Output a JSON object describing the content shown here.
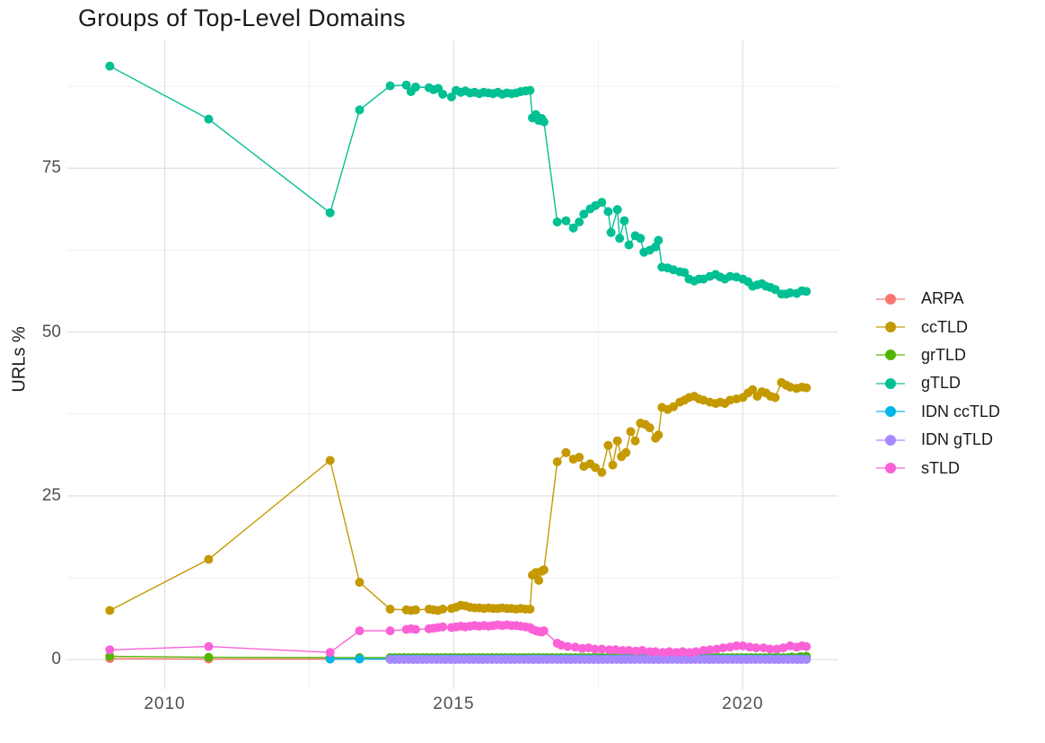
{
  "chart": {
    "title": "Groups of Top-Level Domains",
    "ylabel": "URLs %"
  },
  "chart_data": {
    "type": "line",
    "title": "Groups of Top-Level Domains",
    "xlabel": "",
    "ylabel": "URLs %",
    "grid": true,
    "legend_position": "right",
    "x_domain": [
      2008.315,
      2021.64
    ],
    "y_domain": [
      -4.5,
      94.52
    ],
    "x_ticks": [
      {
        "value": 2010,
        "label": "2010"
      },
      {
        "value": 2015,
        "label": "2015"
      },
      {
        "value": 2020,
        "label": "2020"
      }
    ],
    "x_minor_ticks": [
      2012.5,
      2017.5
    ],
    "y_ticks": [
      {
        "value": 0,
        "label": "0"
      },
      {
        "value": 25,
        "label": "25"
      },
      {
        "value": 50,
        "label": "50"
      },
      {
        "value": 75,
        "label": "75"
      }
    ],
    "y_minor_ticks": [
      12.5,
      37.5,
      62.5,
      87.5
    ],
    "series": [
      {
        "name": "ARPA",
        "color": "#F8766D",
        "points": [
          [
            2009.05,
            0.15
          ],
          [
            2010.76,
            0.1
          ],
          [
            2012.86,
            0.08
          ],
          [
            2013.37,
            0.08
          ]
        ],
        "runs": [
          {
            "from": 2013.9,
            "to": 2021.1,
            "step": 0.08,
            "value": 0.07
          }
        ]
      },
      {
        "name": "ccTLD",
        "color": "#C49A00",
        "points": [
          [
            2009.05,
            7.5
          ],
          [
            2010.76,
            15.3
          ],
          [
            2012.86,
            30.4
          ],
          [
            2013.37,
            11.8
          ],
          [
            2013.9,
            7.7
          ],
          [
            2014.18,
            7.6
          ],
          [
            2014.26,
            7.5
          ],
          [
            2014.34,
            7.6
          ],
          [
            2014.57,
            7.7
          ],
          [
            2014.65,
            7.6
          ],
          [
            2014.73,
            7.5
          ],
          [
            2014.81,
            7.7
          ],
          [
            2014.96,
            7.8
          ],
          [
            2015.04,
            8.0
          ],
          [
            2015.12,
            8.3
          ],
          [
            2015.2,
            8.2
          ],
          [
            2015.28,
            8.0
          ],
          [
            2015.36,
            7.9
          ],
          [
            2015.44,
            7.9
          ],
          [
            2015.52,
            7.8
          ],
          [
            2015.6,
            7.9
          ],
          [
            2015.68,
            7.8
          ],
          [
            2015.76,
            7.8
          ],
          [
            2015.84,
            7.9
          ],
          [
            2015.92,
            7.8
          ],
          [
            2016.0,
            7.8
          ],
          [
            2016.08,
            7.7
          ],
          [
            2016.16,
            7.8
          ],
          [
            2016.24,
            7.7
          ],
          [
            2016.32,
            7.7
          ],
          [
            2016.36,
            12.9
          ],
          [
            2016.42,
            13.3
          ],
          [
            2016.47,
            12.1
          ],
          [
            2016.52,
            13.5
          ],
          [
            2016.56,
            13.7
          ],
          [
            2016.79,
            30.2
          ],
          [
            2016.94,
            31.6
          ],
          [
            2017.07,
            30.6
          ],
          [
            2017.17,
            30.9
          ],
          [
            2017.25,
            29.5
          ],
          [
            2017.36,
            29.9
          ],
          [
            2017.45,
            29.3
          ],
          [
            2017.56,
            28.6
          ],
          [
            2017.67,
            32.7
          ],
          [
            2017.75,
            29.7
          ],
          [
            2017.83,
            33.4
          ],
          [
            2017.9,
            31.0
          ],
          [
            2017.98,
            31.6
          ],
          [
            2018.06,
            34.8
          ],
          [
            2018.14,
            33.4
          ],
          [
            2018.23,
            36.1
          ],
          [
            2018.31,
            35.9
          ],
          [
            2018.39,
            35.4
          ],
          [
            2018.49,
            33.8
          ],
          [
            2018.54,
            34.3
          ],
          [
            2018.6,
            38.5
          ],
          [
            2018.7,
            38.2
          ],
          [
            2018.8,
            38.6
          ],
          [
            2018.91,
            39.3
          ],
          [
            2018.99,
            39.6
          ],
          [
            2019.07,
            40.0
          ],
          [
            2019.16,
            40.2
          ],
          [
            2019.24,
            39.8
          ],
          [
            2019.32,
            39.6
          ],
          [
            2019.43,
            39.3
          ],
          [
            2019.53,
            39.1
          ],
          [
            2019.61,
            39.3
          ],
          [
            2019.69,
            39.1
          ],
          [
            2019.78,
            39.6
          ],
          [
            2019.89,
            39.8
          ],
          [
            2020.0,
            40.0
          ],
          [
            2020.09,
            40.7
          ],
          [
            2020.17,
            41.2
          ],
          [
            2020.25,
            40.2
          ],
          [
            2020.33,
            40.9
          ],
          [
            2020.4,
            40.7
          ],
          [
            2020.48,
            40.2
          ],
          [
            2020.56,
            40.0
          ],
          [
            2020.67,
            42.3
          ],
          [
            2020.75,
            41.9
          ],
          [
            2020.82,
            41.6
          ],
          [
            2020.93,
            41.4
          ],
          [
            2021.02,
            41.6
          ],
          [
            2021.1,
            41.5
          ]
        ],
        "runs": []
      },
      {
        "name": "grTLD",
        "color": "#53B400",
        "points": [
          [
            2009.05,
            0.5
          ],
          [
            2010.76,
            0.35
          ],
          [
            2012.86,
            0.3
          ],
          [
            2013.37,
            0.3
          ],
          [
            2020.85,
            0.4
          ],
          [
            2021.0,
            0.45
          ],
          [
            2021.1,
            0.5
          ]
        ],
        "runs": [
          {
            "from": 2013.9,
            "to": 2021.1,
            "step": 0.08,
            "value": 0.3
          }
        ]
      },
      {
        "name": "gTLD",
        "color": "#00C094",
        "points": [
          [
            2009.05,
            90.6
          ],
          [
            2010.76,
            82.5
          ],
          [
            2012.86,
            68.2
          ],
          [
            2013.37,
            83.9
          ],
          [
            2013.9,
            87.6
          ],
          [
            2014.18,
            87.7
          ],
          [
            2014.26,
            86.7
          ],
          [
            2014.34,
            87.4
          ],
          [
            2014.57,
            87.3
          ],
          [
            2014.65,
            87.0
          ],
          [
            2014.73,
            87.2
          ],
          [
            2014.81,
            86.3
          ],
          [
            2014.96,
            85.9
          ],
          [
            2015.04,
            86.9
          ],
          [
            2015.12,
            86.6
          ],
          [
            2015.2,
            86.8
          ],
          [
            2015.28,
            86.5
          ],
          [
            2015.36,
            86.6
          ],
          [
            2015.44,
            86.4
          ],
          [
            2015.52,
            86.6
          ],
          [
            2015.6,
            86.5
          ],
          [
            2015.68,
            86.4
          ],
          [
            2015.76,
            86.6
          ],
          [
            2015.84,
            86.3
          ],
          [
            2015.92,
            86.5
          ],
          [
            2016.0,
            86.4
          ],
          [
            2016.08,
            86.5
          ],
          [
            2016.16,
            86.7
          ],
          [
            2016.24,
            86.8
          ],
          [
            2016.32,
            86.9
          ],
          [
            2016.36,
            82.7
          ],
          [
            2016.42,
            83.2
          ],
          [
            2016.47,
            82.3
          ],
          [
            2016.52,
            82.6
          ],
          [
            2016.56,
            82.1
          ],
          [
            2016.79,
            66.8
          ],
          [
            2016.94,
            67.0
          ],
          [
            2017.07,
            65.9
          ],
          [
            2017.17,
            66.8
          ],
          [
            2017.25,
            68.0
          ],
          [
            2017.36,
            68.8
          ],
          [
            2017.45,
            69.3
          ],
          [
            2017.56,
            69.8
          ],
          [
            2017.67,
            68.4
          ],
          [
            2017.72,
            65.2
          ],
          [
            2017.83,
            68.7
          ],
          [
            2017.87,
            64.3
          ],
          [
            2017.95,
            67.0
          ],
          [
            2018.03,
            63.3
          ],
          [
            2018.14,
            64.7
          ],
          [
            2018.23,
            64.3
          ],
          [
            2018.29,
            62.2
          ],
          [
            2018.39,
            62.5
          ],
          [
            2018.49,
            63.0
          ],
          [
            2018.54,
            64.0
          ],
          [
            2018.6,
            59.9
          ],
          [
            2018.7,
            59.8
          ],
          [
            2018.8,
            59.5
          ],
          [
            2018.91,
            59.2
          ],
          [
            2018.99,
            59.1
          ],
          [
            2019.07,
            58.1
          ],
          [
            2019.16,
            57.8
          ],
          [
            2019.24,
            58.1
          ],
          [
            2019.32,
            58.1
          ],
          [
            2019.43,
            58.5
          ],
          [
            2019.53,
            58.8
          ],
          [
            2019.61,
            58.4
          ],
          [
            2019.69,
            58.1
          ],
          [
            2019.78,
            58.5
          ],
          [
            2019.89,
            58.4
          ],
          [
            2020.0,
            58.1
          ],
          [
            2020.09,
            57.7
          ],
          [
            2020.17,
            57.0
          ],
          [
            2020.25,
            57.2
          ],
          [
            2020.33,
            57.4
          ],
          [
            2020.4,
            57.0
          ],
          [
            2020.48,
            56.8
          ],
          [
            2020.56,
            56.5
          ],
          [
            2020.67,
            55.8
          ],
          [
            2020.75,
            55.8
          ],
          [
            2020.82,
            56.0
          ],
          [
            2020.93,
            55.9
          ],
          [
            2021.02,
            56.3
          ],
          [
            2021.1,
            56.2
          ]
        ],
        "runs": []
      },
      {
        "name": "IDN ccTLD",
        "color": "#00B6EB",
        "points": [
          [
            2012.86,
            0.1
          ],
          [
            2013.37,
            0.1
          ]
        ],
        "runs": [
          {
            "from": 2013.9,
            "to": 2021.1,
            "step": 0.08,
            "value": 0.1
          }
        ]
      },
      {
        "name": "IDN gTLD",
        "color": "#A58AFF",
        "points": [],
        "runs": [
          {
            "from": 2013.9,
            "to": 2021.1,
            "step": 0.08,
            "value": 0.02
          }
        ]
      },
      {
        "name": "sTLD",
        "color": "#FB61D7",
        "points": [
          [
            2009.05,
            1.5
          ],
          [
            2010.76,
            2.0
          ],
          [
            2012.86,
            1.1
          ],
          [
            2013.37,
            4.4
          ],
          [
            2013.9,
            4.4
          ],
          [
            2014.18,
            4.6
          ],
          [
            2014.26,
            4.7
          ],
          [
            2014.34,
            4.6
          ],
          [
            2014.57,
            4.7
          ],
          [
            2014.65,
            4.8
          ],
          [
            2014.73,
            4.9
          ],
          [
            2014.81,
            5.0
          ],
          [
            2014.96,
            4.9
          ],
          [
            2015.04,
            5.0
          ],
          [
            2015.12,
            5.1
          ],
          [
            2015.2,
            5.0
          ],
          [
            2015.28,
            5.1
          ],
          [
            2015.36,
            5.2
          ],
          [
            2015.44,
            5.1
          ],
          [
            2015.52,
            5.2
          ],
          [
            2015.6,
            5.1
          ],
          [
            2015.68,
            5.2
          ],
          [
            2015.76,
            5.3
          ],
          [
            2015.84,
            5.2
          ],
          [
            2015.92,
            5.3
          ],
          [
            2016.0,
            5.2
          ],
          [
            2016.08,
            5.2
          ],
          [
            2016.16,
            5.1
          ],
          [
            2016.24,
            5.0
          ],
          [
            2016.32,
            4.9
          ],
          [
            2016.36,
            4.6
          ],
          [
            2016.42,
            4.4
          ],
          [
            2016.47,
            4.3
          ],
          [
            2016.52,
            4.2
          ],
          [
            2016.56,
            4.4
          ],
          [
            2016.79,
            2.5
          ],
          [
            2016.86,
            2.2
          ],
          [
            2016.97,
            2.0
          ],
          [
            2017.1,
            1.9
          ],
          [
            2017.22,
            1.7
          ],
          [
            2017.33,
            1.8
          ],
          [
            2017.44,
            1.6
          ],
          [
            2017.56,
            1.6
          ],
          [
            2017.69,
            1.5
          ],
          [
            2017.8,
            1.5
          ],
          [
            2017.92,
            1.4
          ],
          [
            2018.03,
            1.4
          ],
          [
            2018.15,
            1.3
          ],
          [
            2018.26,
            1.4
          ],
          [
            2018.39,
            1.2
          ],
          [
            2018.49,
            1.2
          ],
          [
            2018.62,
            1.1
          ],
          [
            2018.73,
            1.2
          ],
          [
            2018.85,
            1.1
          ],
          [
            2018.96,
            1.2
          ],
          [
            2019.08,
            1.1
          ],
          [
            2019.19,
            1.2
          ],
          [
            2019.32,
            1.4
          ],
          [
            2019.43,
            1.5
          ],
          [
            2019.55,
            1.6
          ],
          [
            2019.66,
            1.8
          ],
          [
            2019.78,
            1.9
          ],
          [
            2019.89,
            2.1
          ],
          [
            2020.0,
            2.1
          ],
          [
            2020.12,
            1.9
          ],
          [
            2020.23,
            1.8
          ],
          [
            2020.36,
            1.8
          ],
          [
            2020.47,
            1.6
          ],
          [
            2020.59,
            1.6
          ],
          [
            2020.7,
            1.8
          ],
          [
            2020.82,
            2.1
          ],
          [
            2020.93,
            1.9
          ],
          [
            2021.02,
            2.1
          ],
          [
            2021.1,
            2.0
          ]
        ],
        "runs": []
      }
    ],
    "style": {
      "major_grid_color": "#E3E3E3",
      "minor_grid_color": "#EFEFEF",
      "point_radius": 5,
      "line_width": 1.4
    },
    "legend": [
      {
        "label": "ARPA",
        "color": "#F8766D"
      },
      {
        "label": "ccTLD",
        "color": "#C49A00"
      },
      {
        "label": "grTLD",
        "color": "#53B400"
      },
      {
        "label": "gTLD",
        "color": "#00C094"
      },
      {
        "label": "IDN ccTLD",
        "color": "#00B6EB"
      },
      {
        "label": "IDN gTLD",
        "color": "#A58AFF"
      },
      {
        "label": "sTLD",
        "color": "#FB61D7"
      }
    ]
  }
}
